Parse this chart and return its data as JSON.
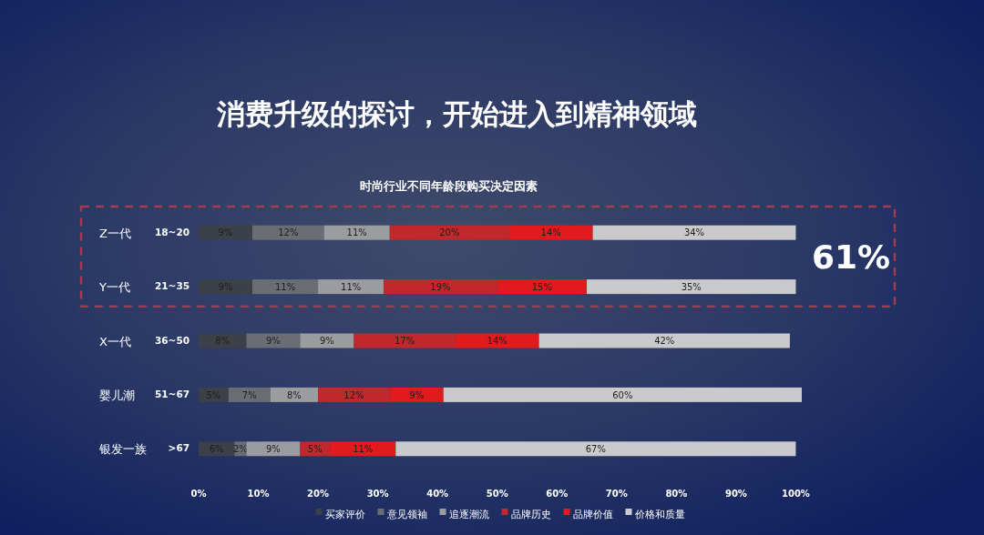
{
  "chart_data": {
    "type": "bar",
    "orientation": "horizontal",
    "stacked": true,
    "title": "消费升级的探讨，开始进入到精神领域",
    "subtitle": "时尚行业不同年龄段购买决定因素",
    "categories": [
      "Z一代",
      "Y一代",
      "X一代",
      "婴儿潮",
      "银发一族"
    ],
    "y2_categories": [
      "18~20",
      "21~35",
      "36~50",
      "51~67",
      ">67"
    ],
    "series": [
      {
        "name": "买家评价",
        "color": "#3c4048",
        "values": [
          9,
          9,
          8,
          5,
          6
        ],
        "value_labels": [
          "9%",
          "9%",
          "8%",
          "5%",
          "6%"
        ]
      },
      {
        "name": "意见领袖",
        "color": "#6a6d73",
        "values": [
          12,
          11,
          9,
          7,
          2
        ],
        "value_labels": [
          "12%",
          "11%",
          "9%",
          "7%",
          "2%"
        ]
      },
      {
        "name": "追逐潮流",
        "color": "#9b9c9f",
        "values": [
          11,
          11,
          9,
          8,
          9
        ],
        "value_labels": [
          "11%",
          "11%",
          "9%",
          "8%",
          "9%"
        ]
      },
      {
        "name": "品牌历史",
        "color": "#c0282c",
        "values": [
          20,
          19,
          17,
          12,
          5
        ],
        "value_labels": [
          "20%",
          "19%",
          "17%",
          "12%",
          "5%"
        ]
      },
      {
        "name": "品牌价值",
        "color": "#e2191d",
        "values": [
          14,
          15,
          14,
          9,
          11
        ],
        "value_labels": [
          "14%",
          "15%",
          "14%",
          "9%",
          "11%"
        ]
      },
      {
        "name": "价格和质量",
        "color": "#cacacd",
        "values": [
          34,
          35,
          42,
          60,
          67
        ],
        "value_labels": [
          "34%",
          "35%",
          "42%",
          "60%",
          "67%"
        ]
      }
    ],
    "xlim": [
      0,
      101
    ],
    "xticks": [
      {
        "value": 0,
        "label": "0%"
      },
      {
        "value": 10,
        "label": "10%"
      },
      {
        "value": 20,
        "label": "20%"
      },
      {
        "value": 30,
        "label": "30%"
      },
      {
        "value": 40,
        "label": "40%"
      },
      {
        "value": 50,
        "label": "50%"
      },
      {
        "value": 60,
        "label": "60%"
      },
      {
        "value": 70,
        "label": "70%"
      },
      {
        "value": 80,
        "label": "80%"
      },
      {
        "value": 90,
        "label": "90%"
      },
      {
        "value": 100,
        "label": "100%"
      }
    ],
    "legend": "bottom",
    "annotations": [
      "61%"
    ]
  }
}
